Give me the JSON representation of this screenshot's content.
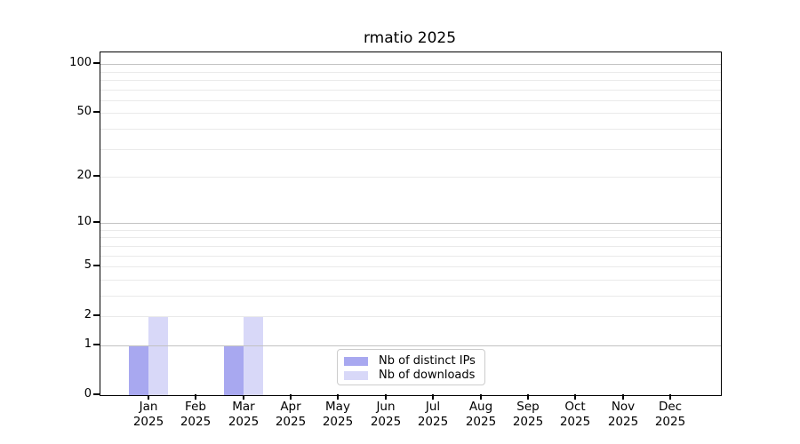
{
  "page": {
    "background": "#ffffff"
  },
  "chart_data": {
    "type": "bar",
    "title": "rmatio 2025",
    "categories": [
      "Jan",
      "Feb",
      "Mar",
      "Apr",
      "May",
      "Jun",
      "Jul",
      "Aug",
      "Sep",
      "Oct",
      "Nov",
      "Dec"
    ],
    "category_year": "2025",
    "series": [
      {
        "name": "Nb of distinct IPs",
        "color": "#a8a8f0",
        "values": [
          1,
          0,
          1,
          0,
          0,
          0,
          0,
          0,
          0,
          0,
          0,
          0
        ]
      },
      {
        "name": "Nb of downloads",
        "color": "#d8d8f8",
        "values": [
          2,
          0,
          2,
          0,
          0,
          0,
          0,
          0,
          0,
          0,
          0,
          0
        ]
      }
    ],
    "y_axis": {
      "scale": "log1p",
      "tick_values": [
        0,
        1,
        2,
        5,
        10,
        20,
        50,
        100
      ],
      "major_gridlines": [
        1,
        10,
        100
      ],
      "minor_gridlines": [
        2,
        3,
        4,
        5,
        6,
        7,
        8,
        9,
        20,
        30,
        40,
        50,
        60,
        70,
        80,
        90
      ],
      "ylim": [
        0,
        118
      ]
    },
    "xlabel": "",
    "ylabel": "",
    "legend_position": "lower center",
    "grid": true,
    "colors": {
      "major_grid": "#c2c2c2",
      "minor_grid": "#eaeaea",
      "frame": "#000000",
      "text": "#000000",
      "legend_border": "#cccccc"
    }
  }
}
